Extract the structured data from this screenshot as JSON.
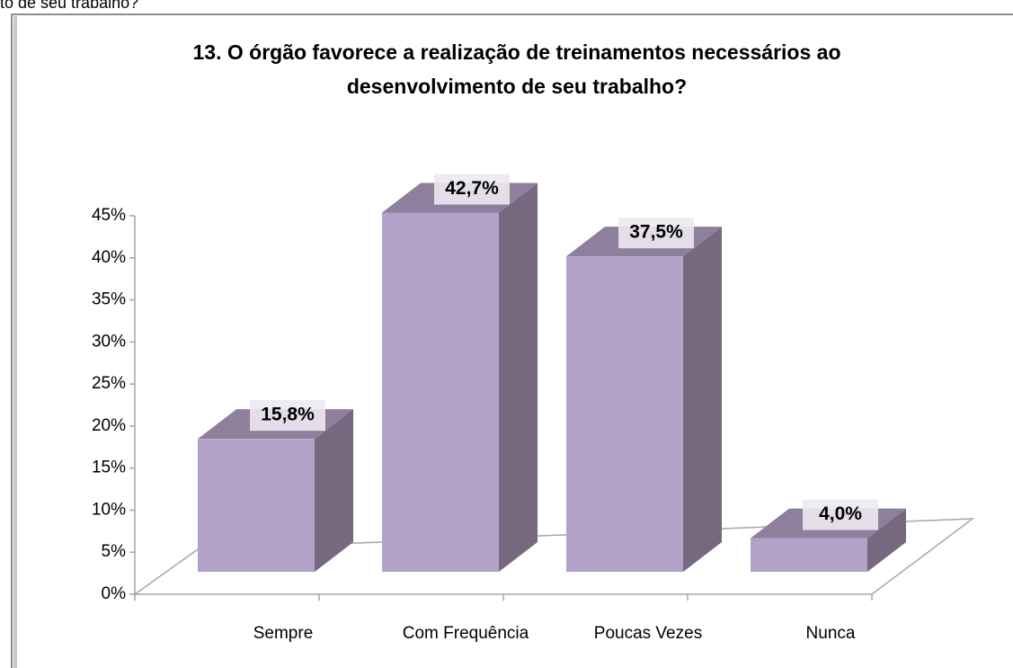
{
  "caption": "to de seu trabalho?",
  "chart_data": {
    "type": "bar3d",
    "title": [
      "13. O órgão favorece a realização de treinamentos necessários ao",
      "desenvolvimento de seu trabalho?"
    ],
    "categories": [
      "Sempre",
      "Com Frequência",
      "Poucas Vezes",
      "Nunca"
    ],
    "values": [
      15.8,
      42.7,
      37.5,
      4.0
    ],
    "value_labels": [
      "15,8%",
      "42,7%",
      "37,5%",
      "4,0%"
    ],
    "color": "#b3a2c7",
    "ylim": [
      0,
      45
    ],
    "yticks": [
      {
        "value": 0,
        "label": "0%"
      },
      {
        "value": 5,
        "label": "5%"
      },
      {
        "value": 10,
        "label": "10%"
      },
      {
        "value": 15,
        "label": "15%"
      },
      {
        "value": 20,
        "label": "20%"
      },
      {
        "value": 25,
        "label": "25%"
      },
      {
        "value": 30,
        "label": "30%"
      },
      {
        "value": 35,
        "label": "35%"
      },
      {
        "value": 40,
        "label": "40%"
      },
      {
        "value": 45,
        "label": "45%"
      }
    ]
  }
}
